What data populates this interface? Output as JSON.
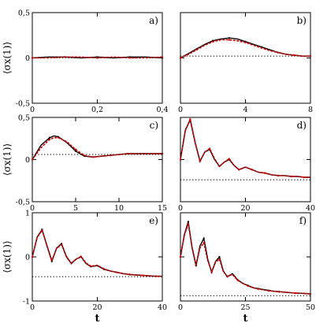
{
  "chart_data": [
    {
      "type": "line",
      "panel_label": "a)",
      "xlim": [
        0,
        0.4
      ],
      "ylim": [
        -0.5,
        0.5
      ],
      "xticks": [
        "0",
        "0,2",
        "0,4"
      ],
      "yticks": [
        "-0,5",
        "0",
        "0,5"
      ],
      "ylabel": "⟨σx(1)⟩",
      "xlabel": "",
      "baseline": 0.0,
      "series": [
        {
          "color": "#000000",
          "x": [
            0,
            0.05,
            0.1,
            0.15,
            0.2,
            0.25,
            0.3,
            0.35,
            0.4
          ],
          "y": [
            0,
            0.01,
            0.01,
            0.0,
            0.01,
            0.0,
            0.01,
            0.01,
            0.0
          ]
        },
        {
          "color": "#d40000",
          "x": [
            0,
            0.05,
            0.1,
            0.15,
            0.2,
            0.25,
            0.3,
            0.35,
            0.4
          ],
          "y": [
            0,
            0.0,
            0.01,
            0.01,
            0.0,
            0.01,
            0.0,
            0.0,
            0.01
          ]
        }
      ]
    },
    {
      "type": "line",
      "panel_label": "b)",
      "xlim": [
        0,
        8
      ],
      "ylim": [
        -0.5,
        0.5
      ],
      "xticks": [
        "0",
        "4",
        "8"
      ],
      "yticks": [],
      "ylabel": "",
      "xlabel": "",
      "baseline": 0.02,
      "series": [
        {
          "color": "#000000",
          "x": [
            0,
            0.5,
            1,
            1.5,
            2,
            2.5,
            3,
            3.5,
            4,
            4.5,
            5,
            5.5,
            6,
            6.5,
            7,
            7.5,
            8
          ],
          "y": [
            0.0,
            0.05,
            0.1,
            0.15,
            0.19,
            0.21,
            0.22,
            0.21,
            0.18,
            0.15,
            0.12,
            0.09,
            0.06,
            0.04,
            0.03,
            0.02,
            0.02
          ]
        },
        {
          "color": "#d40000",
          "x": [
            0,
            0.5,
            1,
            1.5,
            2,
            2.5,
            3,
            3.5,
            4,
            4.5,
            5,
            5.5,
            6,
            6.5,
            7,
            7.5,
            8
          ],
          "y": [
            0.0,
            0.04,
            0.09,
            0.14,
            0.18,
            0.2,
            0.2,
            0.19,
            0.17,
            0.14,
            0.11,
            0.08,
            0.06,
            0.04,
            0.03,
            0.02,
            0.02
          ]
        }
      ]
    },
    {
      "type": "line",
      "panel_label": "c)",
      "xlim": [
        0,
        15
      ],
      "ylim": [
        -0.5,
        0.5
      ],
      "xticks": [
        "0",
        "5",
        "10",
        "15"
      ],
      "yticks": [
        "-0,5",
        "0",
        "0,5"
      ],
      "ylabel": "⟨σx(1)⟩",
      "xlabel": "",
      "baseline": 0.06,
      "series": [
        {
          "color": "#000000",
          "x": [
            0,
            1,
            2,
            2.5,
            3,
            4,
            5,
            6,
            7,
            8,
            9,
            10,
            11,
            12,
            13,
            14,
            15
          ],
          "y": [
            0.0,
            0.17,
            0.26,
            0.28,
            0.27,
            0.2,
            0.1,
            0.04,
            0.03,
            0.04,
            0.05,
            0.06,
            0.07,
            0.07,
            0.07,
            0.07,
            0.07
          ]
        },
        {
          "color": "#d40000",
          "x": [
            0,
            1,
            2,
            2.5,
            3,
            4,
            5,
            6,
            7,
            8,
            9,
            10,
            11,
            12,
            13,
            14,
            15
          ],
          "y": [
            0.0,
            0.14,
            0.24,
            0.26,
            0.26,
            0.21,
            0.12,
            0.05,
            0.03,
            0.04,
            0.05,
            0.06,
            0.07,
            0.07,
            0.07,
            0.07,
            0.07
          ]
        }
      ]
    },
    {
      "type": "line",
      "panel_label": "d)",
      "xlim": [
        0,
        40
      ],
      "ylim": [
        -0.5,
        0.5
      ],
      "xticks": [
        "0",
        "20",
        "40"
      ],
      "yticks": [],
      "ylabel": "",
      "xlabel": "",
      "baseline": -0.24,
      "series": [
        {
          "color": "#000000",
          "x": [
            0,
            1.5,
            3,
            4.5,
            6,
            7.5,
            9,
            10.5,
            12,
            13.5,
            15,
            16.5,
            18,
            20,
            22,
            24,
            26,
            28,
            30,
            32,
            34,
            36,
            38,
            40
          ],
          "y": [
            0.0,
            0.35,
            0.47,
            0.2,
            -0.02,
            0.09,
            0.12,
            0.0,
            -0.08,
            -0.03,
            0.0,
            -0.07,
            -0.12,
            -0.09,
            -0.12,
            -0.15,
            -0.16,
            -0.18,
            -0.19,
            -0.19,
            -0.2,
            -0.2,
            -0.21,
            -0.21
          ]
        },
        {
          "color": "#d40000",
          "x": [
            0,
            1.5,
            3,
            4.5,
            6,
            7.5,
            9,
            10.5,
            12,
            13.5,
            15,
            16.5,
            18,
            20,
            22,
            24,
            26,
            28,
            30,
            32,
            34,
            36,
            38,
            40
          ],
          "y": [
            0.0,
            0.34,
            0.48,
            0.21,
            -0.02,
            0.09,
            0.13,
            0.01,
            -0.08,
            -0.03,
            0.01,
            -0.07,
            -0.12,
            -0.09,
            -0.12,
            -0.15,
            -0.16,
            -0.18,
            -0.19,
            -0.19,
            -0.2,
            -0.2,
            -0.21,
            -0.21
          ]
        }
      ]
    },
    {
      "type": "line",
      "panel_label": "e)",
      "xlim": [
        0,
        40
      ],
      "ylim": [
        -1,
        1
      ],
      "xticks": [
        "0",
        "20",
        "40"
      ],
      "yticks": [
        "-1",
        "0",
        "1"
      ],
      "ylabel": "⟨σx(1)⟩",
      "xlabel": "t",
      "baseline": -0.45,
      "series": [
        {
          "color": "#000000",
          "x": [
            0,
            1.5,
            3,
            4.5,
            6,
            7.5,
            9,
            10.5,
            12,
            13.5,
            15,
            16.5,
            18,
            20,
            22,
            24,
            26,
            28,
            30,
            32,
            34,
            36,
            38,
            40
          ],
          "y": [
            0.0,
            0.45,
            0.62,
            0.25,
            -0.1,
            0.2,
            0.3,
            0.0,
            -0.15,
            -0.05,
            0.0,
            -0.15,
            -0.22,
            -0.2,
            -0.28,
            -0.32,
            -0.35,
            -0.38,
            -0.4,
            -0.41,
            -0.42,
            -0.43,
            -0.44,
            -0.44
          ]
        },
        {
          "color": "#d40000",
          "x": [
            0,
            1.5,
            3,
            4.5,
            6,
            7.5,
            9,
            10.5,
            12,
            13.5,
            15,
            16.5,
            18,
            20,
            22,
            24,
            26,
            28,
            30,
            32,
            34,
            36,
            38,
            40
          ],
          "y": [
            0.0,
            0.44,
            0.6,
            0.26,
            -0.08,
            0.19,
            0.28,
            0.01,
            -0.14,
            -0.05,
            0.01,
            -0.14,
            -0.21,
            -0.19,
            -0.27,
            -0.32,
            -0.35,
            -0.38,
            -0.4,
            -0.41,
            -0.42,
            -0.43,
            -0.44,
            -0.44
          ]
        }
      ]
    },
    {
      "type": "line",
      "panel_label": "f)",
      "xlim": [
        0,
        50
      ],
      "ylim": [
        -1,
        1
      ],
      "xticks": [
        "0",
        "25",
        "50"
      ],
      "yticks": [],
      "ylabel": "",
      "xlabel": "t",
      "baseline": -0.88,
      "series": [
        {
          "color": "#000000",
          "x": [
            0,
            1.5,
            3,
            4.5,
            6,
            7.5,
            9,
            10.5,
            12,
            13.5,
            15,
            16.5,
            18,
            20,
            22,
            24,
            26,
            28,
            30,
            32,
            34,
            36,
            38,
            40,
            44,
            48,
            50
          ],
          "y": [
            0.0,
            0.5,
            0.8,
            0.2,
            -0.2,
            0.25,
            0.42,
            -0.05,
            -0.35,
            -0.1,
            0.0,
            -0.32,
            -0.45,
            -0.38,
            -0.52,
            -0.6,
            -0.65,
            -0.7,
            -0.72,
            -0.74,
            -0.76,
            -0.78,
            -0.79,
            -0.8,
            -0.82,
            -0.83,
            -0.84
          ]
        },
        {
          "color": "#d40000",
          "x": [
            0,
            1.5,
            3,
            4.5,
            6,
            7.5,
            9,
            10.5,
            12,
            13.5,
            15,
            16.5,
            18,
            20,
            22,
            24,
            26,
            28,
            30,
            32,
            34,
            36,
            38,
            40,
            44,
            48,
            50
          ],
          "y": [
            0.0,
            0.48,
            0.75,
            0.22,
            -0.18,
            0.2,
            0.32,
            -0.08,
            -0.34,
            -0.12,
            -0.05,
            -0.33,
            -0.44,
            -0.4,
            -0.53,
            -0.6,
            -0.66,
            -0.7,
            -0.73,
            -0.75,
            -0.77,
            -0.78,
            -0.79,
            -0.8,
            -0.82,
            -0.83,
            -0.84
          ]
        }
      ]
    }
  ]
}
